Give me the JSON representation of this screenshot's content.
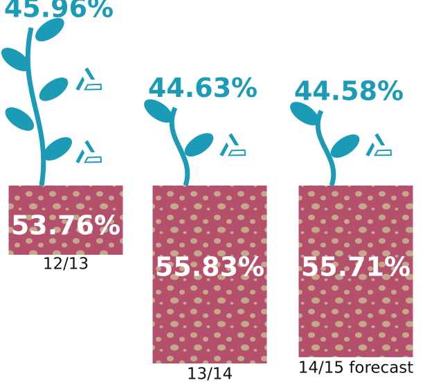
{
  "chart_data": {
    "type": "pictograph",
    "categories": [
      "12/13",
      "13/14",
      "14/15 forecast"
    ],
    "series": [
      {
        "color": "#1c9bb6",
        "values": [
          45.96,
          44.63,
          44.58
        ],
        "value_labels": [
          "45.96%",
          "44.63%",
          "44.58%"
        ]
      },
      {
        "color": "#b4506b",
        "values": [
          53.76,
          55.83,
          55.71
        ],
        "value_labels": [
          "53.76%",
          "55.83%",
          "55.71%"
        ]
      }
    ]
  }
}
